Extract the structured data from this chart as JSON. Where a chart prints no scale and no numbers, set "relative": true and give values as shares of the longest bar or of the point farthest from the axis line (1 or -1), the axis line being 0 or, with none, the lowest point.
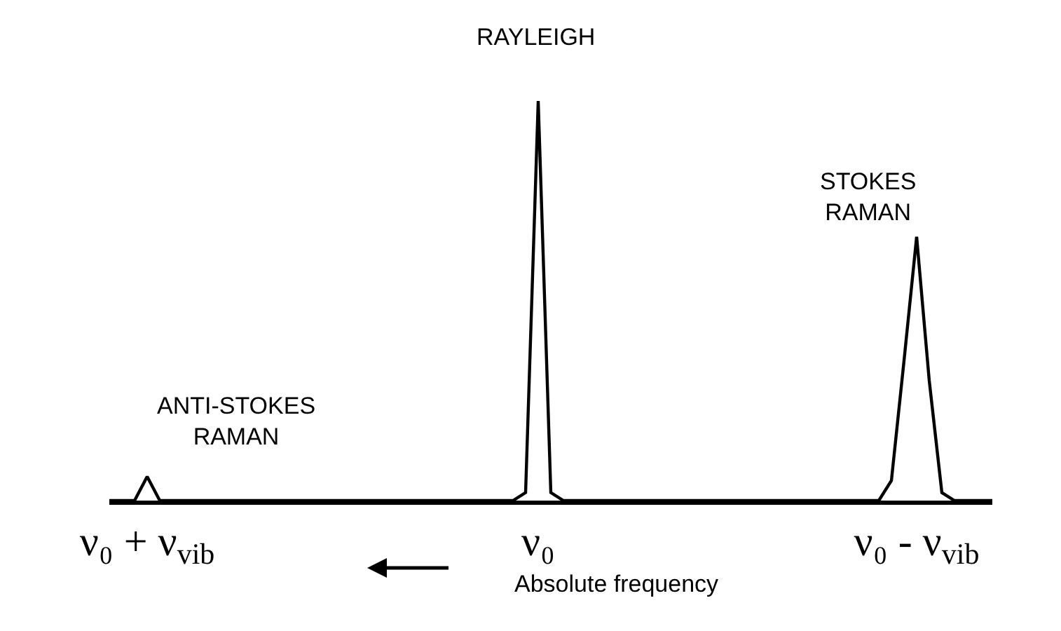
{
  "chart_data": {
    "type": "line",
    "relative": true,
    "color": "#000000",
    "xlabel": "Absolute frequency",
    "grid": false,
    "legend": false,
    "marker": "none",
    "line_style": "solid",
    "categories": [
      null,
      null,
      null,
      "ν₀ + ν$_{vib}$",
      null,
      null,
      null,
      null,
      null,
      null,
      null,
      null,
      null,
      null,
      null,
      null,
      null,
      null,
      null,
      null,
      null,
      null,
      null,
      null,
      null,
      null,
      null,
      null,
      null,
      null,
      null,
      null,
      null,
      null,
      "ν₀",
      null,
      null,
      null,
      null,
      null,
      null,
      null,
      null,
      null,
      null,
      null,
      null,
      null,
      null,
      null,
      null,
      null,
      null,
      null,
      null,
      null,
      null,
      null,
      null,
      null,
      null,
      null,
      null,
      null,
      "ν₀ - ν$_{vib}$",
      null,
      null,
      null,
      null,
      null,
      null
    ],
    "values": [
      0,
      0,
      0,
      0.06,
      0,
      0,
      0,
      0,
      0,
      0,
      0,
      0,
      0,
      0,
      0,
      0,
      0,
      0,
      0,
      0,
      0,
      0,
      0,
      0,
      0,
      0,
      0,
      0,
      0,
      0,
      0,
      0,
      0,
      0.02,
      1,
      0.02,
      0,
      0,
      0,
      0,
      0,
      0,
      0,
      0,
      0,
      0,
      0,
      0,
      0,
      0,
      0,
      0,
      0,
      0,
      0,
      0,
      0,
      0,
      0,
      0,
      0,
      0,
      0.05,
      0.35,
      0.66,
      0.3,
      0.02,
      0,
      0,
      0,
      0
    ],
    "annotations": [
      "RAYLEIGH",
      "STOKES\nRAMAN",
      "ANTI-STOKES\nRAMAN"
    ]
  }
}
